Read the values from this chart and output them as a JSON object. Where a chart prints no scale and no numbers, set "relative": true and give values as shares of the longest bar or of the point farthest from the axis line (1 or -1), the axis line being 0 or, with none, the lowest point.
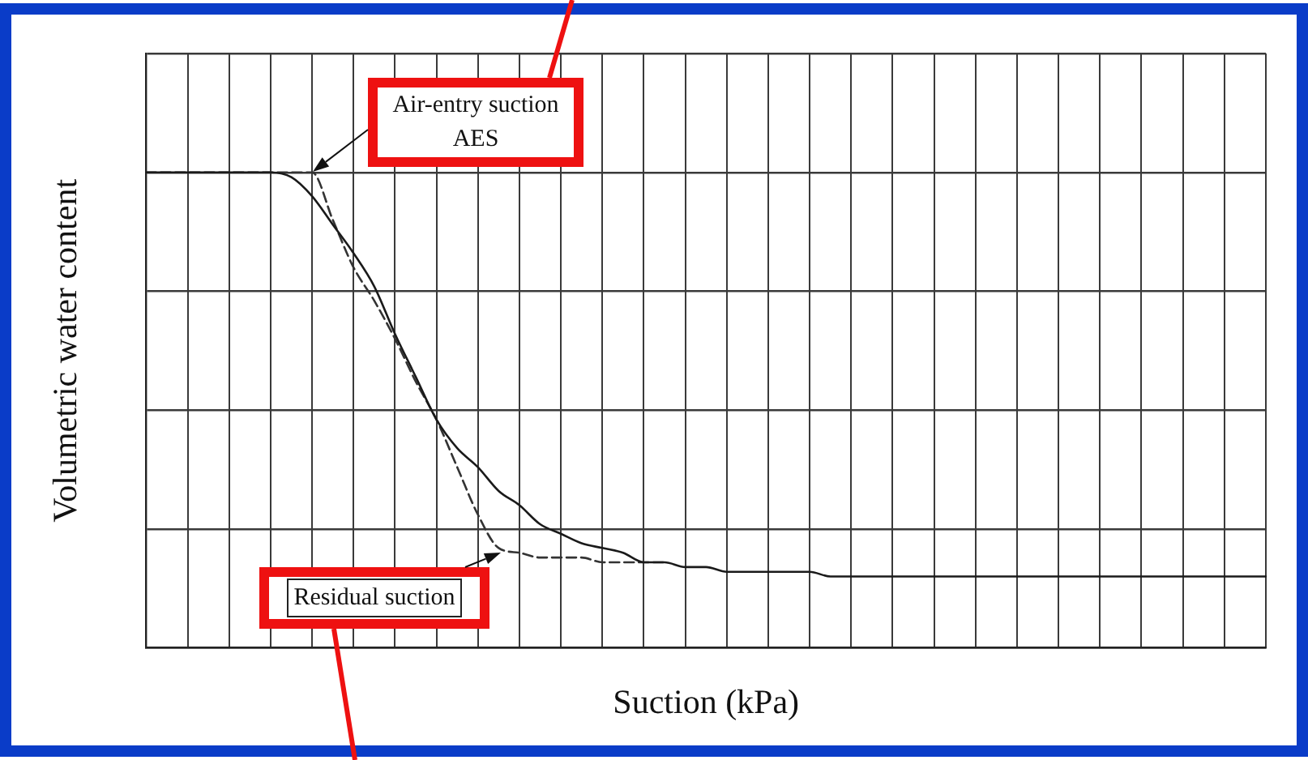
{
  "chart_data": {
    "type": "line",
    "relative": true,
    "xlabel": "Suction (kPa)",
    "ylabel": "Volumetric water content",
    "categories": [
      null,
      null,
      null,
      null,
      null,
      null,
      null,
      null,
      null,
      null,
      null,
      null,
      null,
      null,
      null,
      null,
      null,
      null,
      null,
      null,
      null,
      null,
      null,
      null,
      null,
      null,
      null,
      null,
      null,
      null,
      null,
      null,
      null,
      null,
      null,
      null,
      null,
      null,
      null,
      null,
      null,
      null,
      null,
      null,
      null,
      null,
      null,
      null,
      null,
      null,
      null,
      null,
      null,
      null,
      null
    ],
    "series": [
      {
        "color": "#1a1a1a",
        "line_style": "solid",
        "values": [
          1,
          1,
          1,
          1,
          1,
          1,
          1,
          0.99,
          0.95,
          0.89,
          0.83,
          0.76,
          0.66,
          0.57,
          0.48,
          0.42,
          0.38,
          0.33,
          0.3,
          0.26,
          0.24,
          0.22,
          0.21,
          0.2,
          0.18,
          0.18,
          0.17,
          0.17,
          0.16,
          0.16,
          0.16,
          0.16,
          0.16,
          0.15,
          0.15,
          0.15,
          0.15,
          0.15,
          0.15,
          0.15,
          0.15,
          0.15,
          0.15,
          0.15,
          0.15,
          0.15,
          0.15,
          0.15,
          0.15,
          0.15,
          0.15,
          0.15,
          0.15,
          0.15,
          0.15
        ]
      },
      {
        "color": "#333333",
        "line_style": "dashed",
        "values": [
          1,
          1,
          1,
          1,
          1,
          1,
          1,
          1,
          1,
          0.9,
          0.8,
          0.73,
          0.65,
          0.56,
          0.48,
          0.38,
          0.28,
          0.21,
          0.2,
          0.19,
          0.19,
          0.19,
          0.18,
          0.18,
          0.18,
          0.18,
          null,
          null,
          null,
          null,
          null,
          null,
          null,
          null,
          null,
          null,
          null,
          null,
          null,
          null,
          null,
          null,
          null,
          null,
          null,
          null,
          null,
          null,
          null,
          null,
          null,
          null,
          null,
          null,
          null
        ]
      }
    ],
    "grid": true,
    "tick_labels": false,
    "annotations": [
      "Air-entry suction AES",
      "Residual suction"
    ]
  }
}
